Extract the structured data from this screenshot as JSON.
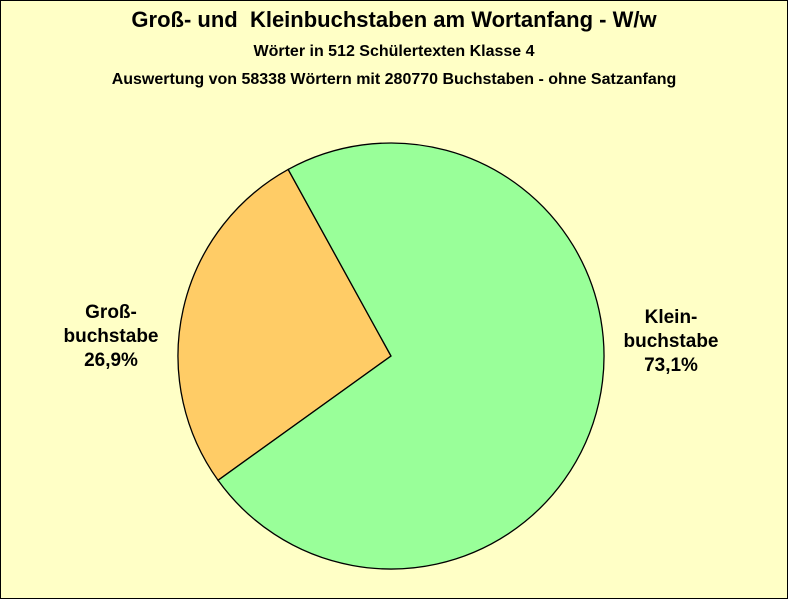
{
  "chart_data": {
    "type": "pie",
    "title": "Groß- und  Kleinbuchstaben am Wortanfang - W/w",
    "subtitle": "Wörter in 512 Schülertexten Klasse 4",
    "subtitle2": "Auswertung von 58338 Wörtern mit 280770 Buchstaben - ohne Satzanfang",
    "categories": [
      "Groß-buchstabe",
      "Klein-buchstabe"
    ],
    "values": [
      26.9,
      73.1
    ],
    "value_labels": [
      "26,9%",
      "73,1%"
    ],
    "colors": [
      "#ffcc66",
      "#99ff99"
    ]
  }
}
